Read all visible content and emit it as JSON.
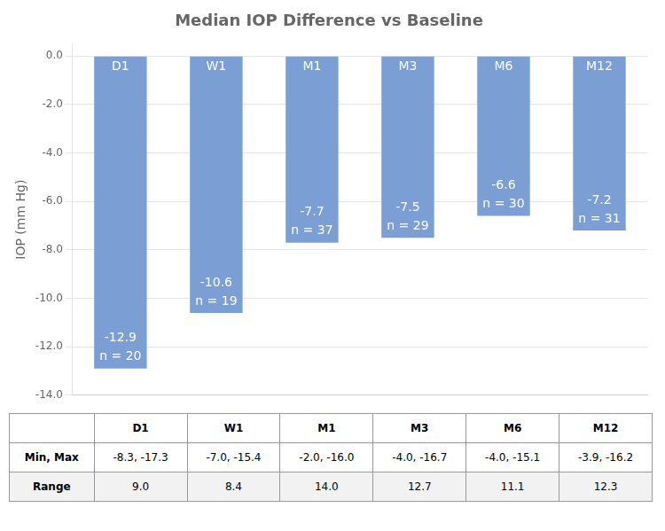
{
  "chart_data": {
    "type": "bar",
    "title": "Median IOP Difference vs Baseline",
    "categories": [
      "D1",
      "W1",
      "M1",
      "M3",
      "M6",
      "M12"
    ],
    "values": [
      -12.9,
      -10.6,
      -7.7,
      -7.5,
      -6.6,
      -7.2
    ],
    "count_labels": [
      "n = 20",
      "n = 19",
      "n = 37",
      "n = 29",
      "n = 30",
      "n = 31"
    ],
    "color": "#7b9fd4",
    "data_labels": true,
    "ylabel": "IOP (mm Hg)",
    "ylim": [
      -14.0,
      0.5
    ],
    "yticks": [
      {
        "value": 0.0,
        "label": "0.0"
      },
      {
        "value": -2.0,
        "label": "-2.0"
      },
      {
        "value": -4.0,
        "label": "-4.0"
      },
      {
        "value": -6.0,
        "label": "-6.0"
      },
      {
        "value": -8.0,
        "label": "-8.0"
      },
      {
        "value": -10.0,
        "label": "-10.0"
      },
      {
        "value": -12.0,
        "label": "-12.0"
      },
      {
        "value": -14.0,
        "label": "-14.0"
      }
    ],
    "grid": true,
    "tick_labels": "y",
    "table": {
      "rows": [
        {
          "label": "Min, Max",
          "cells": [
            "-8.3, -17.3",
            "-7.0, -15.4",
            "-2.0, -16.0",
            "-4.0, -16.7",
            "-4.0, -15.1",
            "-3.9, -16.2"
          ]
        },
        {
          "label": "Range",
          "cells": [
            "9.0",
            "8.4",
            "14.0",
            "12.7",
            "11.1",
            "12.3"
          ]
        }
      ]
    }
  }
}
